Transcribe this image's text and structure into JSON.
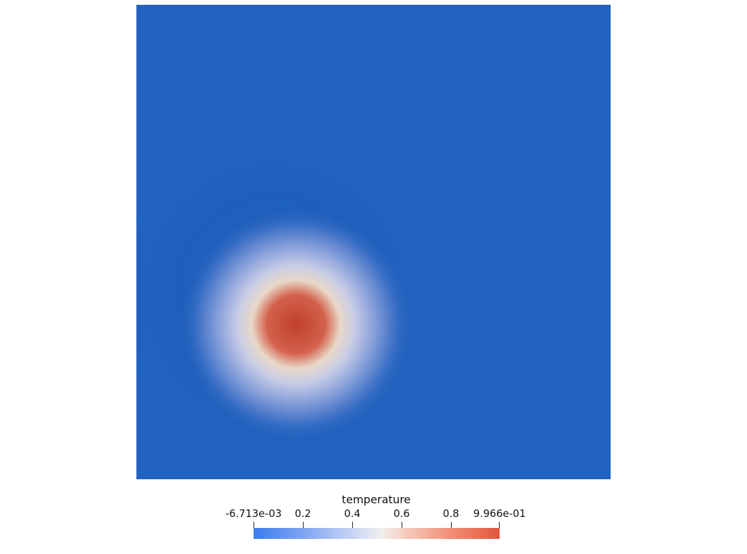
{
  "legend": {
    "title": "temperature",
    "min_label": "-6.713e-03",
    "max_label": "9.966e-01",
    "ticks": [
      "-6.713e-03",
      "0.2",
      "0.4",
      "0.6",
      "0.8",
      "9.966e-01"
    ],
    "range": [
      -0.006713,
      0.9966
    ]
  },
  "colors": {
    "field_background": "#2363BF",
    "hot_core": "#C0432F",
    "ring": "#E8E0D2",
    "colormap_low": "#3A7EF0",
    "colormap_high": "#E2553C"
  }
}
